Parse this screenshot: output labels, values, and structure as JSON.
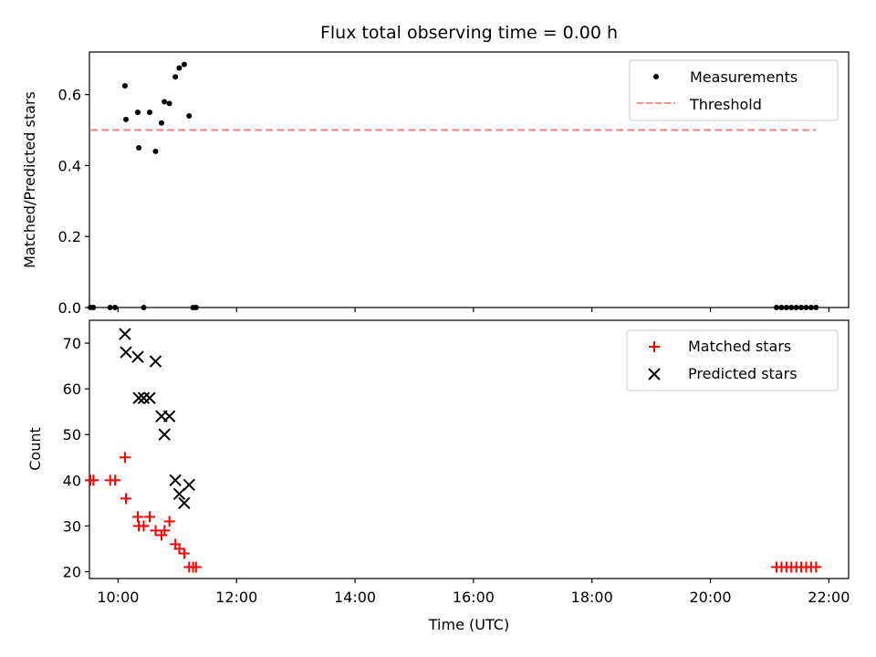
{
  "chart_data": [
    {
      "type": "scatter",
      "title": "Flux total observing time = 0.00 h",
      "xlabel": "",
      "ylabel": "Matched/Predicted stars",
      "xlim": [
        "09:31",
        "22:20"
      ],
      "ylim": [
        0,
        0.72
      ],
      "yticks": [
        0.0,
        0.2,
        0.4,
        0.6
      ],
      "ytick_labels": [
        "0.0",
        "0.2",
        "0.4",
        "0.6"
      ],
      "xticks": [
        "10:00",
        "12:00",
        "14:00",
        "16:00",
        "18:00",
        "20:00",
        "22:00"
      ],
      "show_xtick_labels": false,
      "grid": false,
      "legend_position": "upper right",
      "series": [
        {
          "name": "Measurements",
          "marker": "dot",
          "color": "#000000",
          "points": [
            {
              "x": "09:32",
              "y": 0.0
            },
            {
              "x": "09:35",
              "y": 0.0
            },
            {
              "x": "09:52",
              "y": 0.0
            },
            {
              "x": "09:57",
              "y": 0.0
            },
            {
              "x": "10:07",
              "y": 0.625
            },
            {
              "x": "10:08",
              "y": 0.53
            },
            {
              "x": "10:20",
              "y": 0.55
            },
            {
              "x": "10:21",
              "y": 0.45
            },
            {
              "x": "10:26",
              "y": 0.0
            },
            {
              "x": "10:32",
              "y": 0.55
            },
            {
              "x": "10:38",
              "y": 0.44
            },
            {
              "x": "10:44",
              "y": 0.52
            },
            {
              "x": "10:47",
              "y": 0.58
            },
            {
              "x": "10:52",
              "y": 0.575
            },
            {
              "x": "10:58",
              "y": 0.65
            },
            {
              "x": "11:02",
              "y": 0.675
            },
            {
              "x": "11:07",
              "y": 0.685
            },
            {
              "x": "11:12",
              "y": 0.54
            },
            {
              "x": "11:16",
              "y": 0.0
            },
            {
              "x": "11:19",
              "y": 0.0
            },
            {
              "x": "21:07",
              "y": 0.0
            },
            {
              "x": "21:12",
              "y": 0.0
            },
            {
              "x": "21:17",
              "y": 0.0
            },
            {
              "x": "21:22",
              "y": 0.0
            },
            {
              "x": "21:27",
              "y": 0.0
            },
            {
              "x": "21:32",
              "y": 0.0
            },
            {
              "x": "21:37",
              "y": 0.0
            },
            {
              "x": "21:42",
              "y": 0.0
            },
            {
              "x": "21:47",
              "y": 0.0
            }
          ]
        },
        {
          "name": "Threshold",
          "line_style": "dashed",
          "color": "#ff7f7f",
          "points": [
            {
              "x": "09:32",
              "y": 0.5
            },
            {
              "x": "21:47",
              "y": 0.5
            }
          ]
        }
      ]
    },
    {
      "type": "scatter",
      "title": "",
      "xlabel": "Time (UTC)",
      "ylabel": "Count",
      "xlim": [
        "09:31",
        "22:20"
      ],
      "ylim": [
        18.5,
        75
      ],
      "yticks": [
        20,
        30,
        40,
        50,
        60,
        70
      ],
      "ytick_labels": [
        "20",
        "30",
        "40",
        "50",
        "60",
        "70"
      ],
      "xticks": [
        "10:00",
        "12:00",
        "14:00",
        "16:00",
        "18:00",
        "20:00",
        "22:00"
      ],
      "show_xtick_labels": true,
      "grid": false,
      "legend_position": "upper right",
      "series": [
        {
          "name": "Matched stars",
          "marker": "plus",
          "color": "#ff0000",
          "points": [
            {
              "x": "09:32",
              "y": 40
            },
            {
              "x": "09:35",
              "y": 40
            },
            {
              "x": "09:52",
              "y": 40
            },
            {
              "x": "09:57",
              "y": 40
            },
            {
              "x": "10:07",
              "y": 45
            },
            {
              "x": "10:08",
              "y": 36
            },
            {
              "x": "10:20",
              "y": 32
            },
            {
              "x": "10:21",
              "y": 30
            },
            {
              "x": "10:26",
              "y": 30
            },
            {
              "x": "10:32",
              "y": 32
            },
            {
              "x": "10:38",
              "y": 29
            },
            {
              "x": "10:44",
              "y": 28
            },
            {
              "x": "10:47",
              "y": 29
            },
            {
              "x": "10:52",
              "y": 31
            },
            {
              "x": "10:58",
              "y": 26
            },
            {
              "x": "11:02",
              "y": 25
            },
            {
              "x": "11:07",
              "y": 24
            },
            {
              "x": "11:12",
              "y": 21
            },
            {
              "x": "11:16",
              "y": 21
            },
            {
              "x": "11:19",
              "y": 21
            },
            {
              "x": "21:07",
              "y": 21
            },
            {
              "x": "21:12",
              "y": 21
            },
            {
              "x": "21:17",
              "y": 21
            },
            {
              "x": "21:22",
              "y": 21
            },
            {
              "x": "21:27",
              "y": 21
            },
            {
              "x": "21:32",
              "y": 21
            },
            {
              "x": "21:37",
              "y": 21
            },
            {
              "x": "21:42",
              "y": 21
            },
            {
              "x": "21:47",
              "y": 21
            }
          ]
        },
        {
          "name": "Predicted stars",
          "marker": "x",
          "color": "#000000",
          "points": [
            {
              "x": "10:07",
              "y": 72
            },
            {
              "x": "10:08",
              "y": 68
            },
            {
              "x": "10:20",
              "y": 67
            },
            {
              "x": "10:21",
              "y": 58
            },
            {
              "x": "10:26",
              "y": 58
            },
            {
              "x": "10:32",
              "y": 58
            },
            {
              "x": "10:38",
              "y": 66
            },
            {
              "x": "10:44",
              "y": 54
            },
            {
              "x": "10:47",
              "y": 50
            },
            {
              "x": "10:52",
              "y": 54
            },
            {
              "x": "10:58",
              "y": 40
            },
            {
              "x": "11:02",
              "y": 37
            },
            {
              "x": "11:07",
              "y": 35
            },
            {
              "x": "11:12",
              "y": 39
            }
          ]
        }
      ]
    }
  ]
}
